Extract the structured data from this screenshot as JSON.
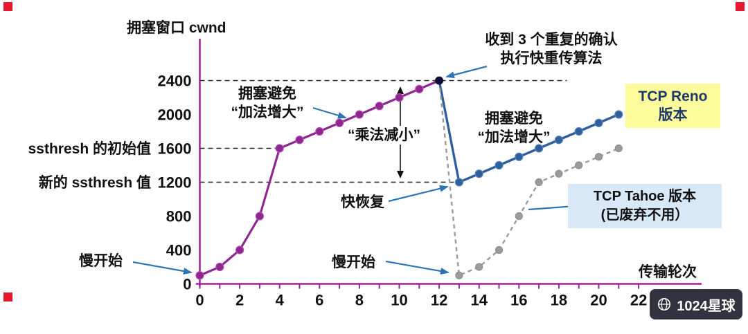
{
  "chart_data": {
    "type": "line",
    "ylabel": "拥塞窗口 cwnd",
    "xlabel": "传输轮次",
    "x_ticks": [
      0,
      2,
      4,
      6,
      8,
      10,
      12,
      14,
      16,
      18,
      20,
      22
    ],
    "x_max": 22,
    "y_ticks": [
      0,
      400,
      800,
      1200,
      1600,
      2000,
      2400
    ],
    "xlim": [
      0,
      22.5
    ],
    "ylim": [
      0,
      2600
    ],
    "grid": false,
    "axis_color": "#a02099",
    "annotation_arrow_color": "#2e75b6",
    "series": [
      {
        "name": "slow-start-and-congestion-avoidance",
        "color": "#8e2790",
        "dot_stroke": "#b84cb4",
        "dash": "none",
        "width": 3.2,
        "dot_r": 5.5,
        "skip_first_dot": false,
        "skip_last_dot": true,
        "points": [
          [
            0,
            100
          ],
          [
            1,
            200
          ],
          [
            2,
            400
          ],
          [
            3,
            800
          ],
          [
            4,
            1600
          ],
          [
            5,
            1700
          ],
          [
            6,
            1800
          ],
          [
            7,
            1900
          ],
          [
            8,
            2000
          ],
          [
            9,
            2100
          ],
          [
            10,
            2200
          ],
          [
            11,
            2300
          ],
          [
            12,
            2400
          ]
        ]
      },
      {
        "name": "tcp-reno",
        "color": "#2f5f9e",
        "dot_stroke": "#5b85b8",
        "dash": "none",
        "width": 3.4,
        "dot_r": 5.5,
        "skip_first_dot": true,
        "skip_last_dot": false,
        "points": [
          [
            12,
            2400
          ],
          [
            13,
            1200
          ],
          [
            14,
            1300
          ],
          [
            15,
            1400
          ],
          [
            16,
            1500
          ],
          [
            17,
            1600
          ],
          [
            18,
            1700
          ],
          [
            19,
            1800
          ],
          [
            20,
            1900
          ],
          [
            21,
            2000
          ]
        ]
      },
      {
        "name": "tcp-tahoe",
        "color": "#9b9b9b",
        "dot_stroke": "#8f8f8f",
        "dash": "6,5",
        "width": 2.4,
        "dot_r": 5,
        "skip_first_dot": true,
        "skip_last_dot": false,
        "points": [
          [
            12,
            2400
          ],
          [
            13,
            100
          ],
          [
            14,
            200
          ],
          [
            15,
            400
          ],
          [
            16,
            800
          ],
          [
            17,
            1200
          ],
          [
            18,
            1300
          ],
          [
            19,
            1400
          ],
          [
            20,
            1500
          ],
          [
            21,
            1600
          ]
        ]
      }
    ],
    "peak_point": {
      "x": 12,
      "y": 2400,
      "color": "#101035"
    },
    "reference_lines": [
      {
        "y": 2400,
        "x1": 0,
        "x2": 18.4
      },
      {
        "y": 1600,
        "x1": 0,
        "x2": 4
      },
      {
        "y": 1200,
        "x1": 0,
        "x2": 13
      }
    ],
    "annotations": {
      "slow_start_left": "慢开始",
      "slow_start_restart": "慢开始",
      "congestion_avoidance_1": [
        "拥塞避免",
        "“加法增大”"
      ],
      "congestion_avoidance_2": [
        "拥塞避免",
        "“加法增大”"
      ],
      "multiplicative_decrease": "“乘法减小”",
      "triple_dup_ack": [
        "收到 3 个重复的确认",
        "执行快重传算法"
      ],
      "fast_recovery": "快恢复",
      "ssthresh_initial": "ssthresh 的初始值",
      "ssthresh_new": "新的 ssthresh 值"
    },
    "legend_boxes": {
      "reno": {
        "lines": [
          "TCP Reno",
          "版本"
        ],
        "bg": "#fdfc9c",
        "text_color": "#1f3a68"
      },
      "tahoe": {
        "lines": [
          "TCP Tahoe 版本",
          "(已废弃不用）"
        ],
        "bg": "#d8e8f7",
        "text_color": "#111111"
      }
    }
  },
  "watermark": {
    "icon": "globe-icon",
    "text": "1024星球",
    "bg": "#33333f"
  }
}
